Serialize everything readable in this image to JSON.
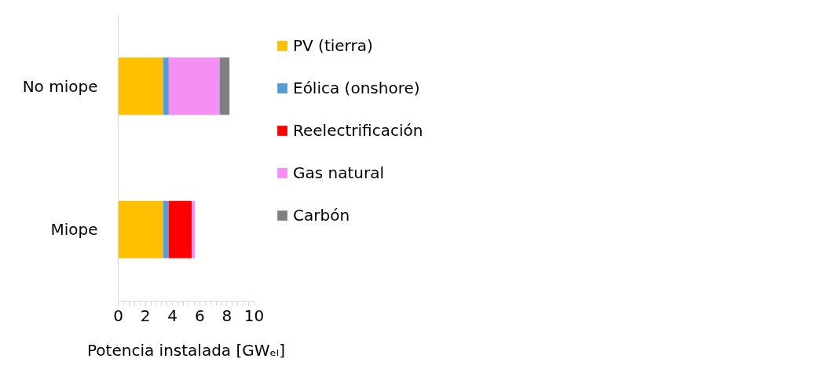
{
  "chart_data": {
    "type": "bar",
    "orientation": "horizontal",
    "stacked": true,
    "categories": [
      "No miope",
      "Miope"
    ],
    "series": [
      {
        "name": "PV (tierra)",
        "color": "#ffc000",
        "values": [
          3.3,
          3.3
        ]
      },
      {
        "name": "Eólica (onshore)",
        "color": "#5b9bd5",
        "values": [
          0.42,
          0.42
        ]
      },
      {
        "name": "Reelectrificación",
        "color": "#ff0000",
        "values": [
          null,
          1.69
        ]
      },
      {
        "name": "Gas natural",
        "color": "#f58ef5",
        "values": [
          3.74,
          0.24
        ]
      },
      {
        "name": "Carbón",
        "color": "#808080",
        "values": [
          0.73,
          null
        ]
      }
    ],
    "xlabel": "Potencia instalada [GWₑₗ]",
    "xlim": [
      0,
      10
    ],
    "xticks": [
      0,
      {
        "value": 0.4,
        "label": null
      },
      {
        "value": 0.8,
        "label": null
      },
      {
        "value": 1.2,
        "label": null
      },
      {
        "value": 1.6,
        "label": null
      },
      2,
      {
        "value": 2.4,
        "label": null
      },
      {
        "value": 2.8,
        "label": null
      },
      {
        "value": 3.2,
        "label": null
      },
      {
        "value": 3.6,
        "label": null
      },
      4,
      {
        "value": 4.4,
        "label": null
      },
      {
        "value": 4.8,
        "label": null
      },
      {
        "value": 5.2,
        "label": null
      },
      {
        "value": 5.6,
        "label": null
      },
      6,
      {
        "value": 6.4,
        "label": null
      },
      {
        "value": 6.8,
        "label": null
      },
      {
        "value": 7.2,
        "label": null
      },
      {
        "value": 7.6,
        "label": null
      },
      8,
      {
        "value": 8.4,
        "label": null
      },
      {
        "value": 8.8,
        "label": null
      },
      {
        "value": 9.2,
        "label": null
      },
      {
        "value": 9.6,
        "label": null
      },
      10
    ],
    "grid": false,
    "legend": "right"
  }
}
